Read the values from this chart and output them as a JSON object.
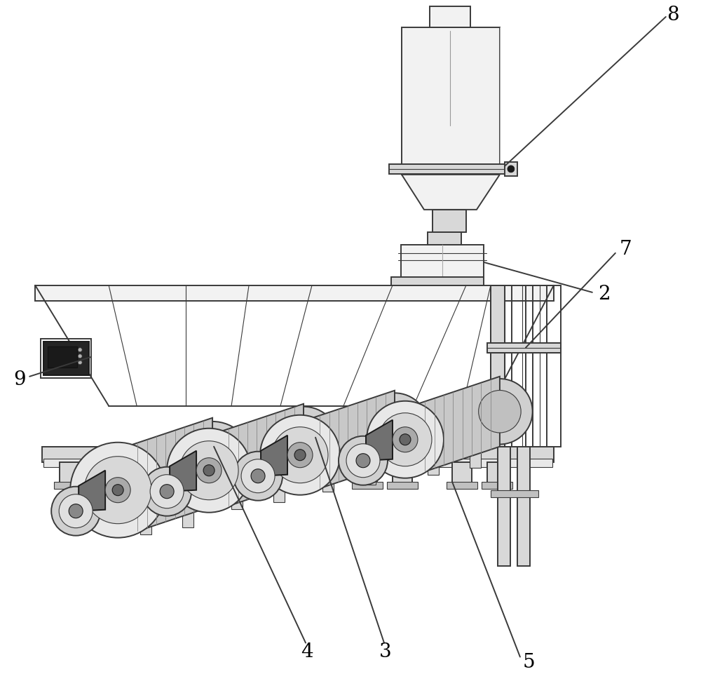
{
  "bg_color": "#ffffff",
  "lc": "#3a3a3a",
  "dc": "#1a1a1a",
  "fc_light": "#f2f2f2",
  "fc_mid": "#d8d8d8",
  "fc_dark": "#888888",
  "fc_motor": "#909090",
  "fc_black": "#2a2a2a",
  "label_fontsize": 20,
  "lw": 1.4,
  "lwt": 0.8
}
